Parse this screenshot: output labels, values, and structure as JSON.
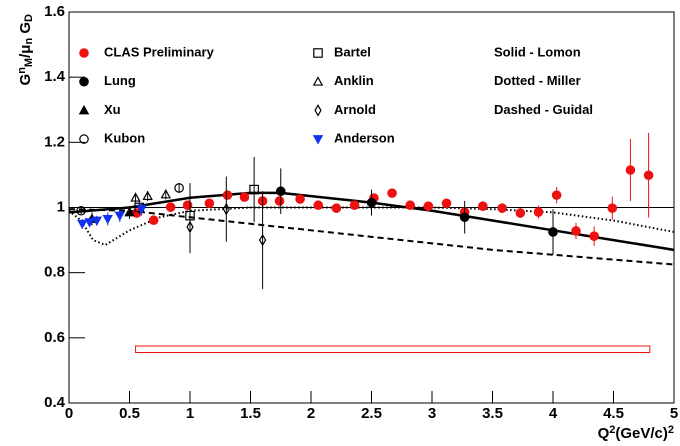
{
  "chart_data": {
    "type": "scatter",
    "ylabel": [
      {
        "text": "G"
      },
      {
        "sup": "n"
      },
      {
        "sub": "M"
      },
      {
        "text": "/μ"
      },
      {
        "sub": "n"
      },
      {
        "text": " G"
      },
      {
        "sub": "D"
      }
    ],
    "xlabel": [
      {
        "text": "Q"
      },
      {
        "sup": "2"
      },
      {
        "text": "(GeV/c)"
      },
      {
        "sup": "2"
      }
    ],
    "xlim": [
      0,
      5
    ],
    "ylim": [
      0.4,
      1.6
    ],
    "xticks": [
      0,
      0.5,
      1,
      1.5,
      2,
      2.5,
      3,
      3.5,
      4,
      4.5,
      5
    ],
    "yticks": [
      0.4,
      0.6,
      0.8,
      1,
      1.2,
      1.4,
      1.6
    ],
    "hline": 1,
    "annotations": [
      "Solid - Lomon",
      "Dotted - Miller",
      "Dashed - Guidal"
    ],
    "series": [
      {
        "name": "CLAS Preliminary",
        "marker": "circle",
        "filled": true,
        "color": "#ee1111",
        "x": [
          0.56,
          0.7,
          0.84,
          0.98,
          1.16,
          1.31,
          1.45,
          1.6,
          1.74,
          1.91,
          2.06,
          2.21,
          2.36,
          2.52,
          2.67,
          2.82,
          2.97,
          3.12,
          3.27,
          3.42,
          3.58,
          3.73,
          3.88,
          4.03,
          4.19,
          4.34,
          4.49,
          4.64,
          4.79
        ],
        "values": [
          0.983,
          0.961,
          1.001,
          1.007,
          1.013,
          1.038,
          1.032,
          1.02,
          1.02,
          1.026,
          1.007,
          0.998,
          1.007,
          1.029,
          1.044,
          1.007,
          1.004,
          1.013,
          0.986,
          1.004,
          0.998,
          0.983,
          0.986,
          1.038,
          0.928,
          0.912,
          0.998,
          1.115,
          1.099
        ],
        "errors": [
          0.01,
          0.01,
          0.01,
          0.01,
          0.01,
          0.01,
          0.01,
          0.01,
          0.01,
          0.01,
          0.01,
          0.01,
          0.01,
          0.01,
          0.01,
          0.01,
          0.01,
          0.01,
          0.015,
          0.015,
          0.015,
          0.015,
          0.02,
          0.025,
          0.025,
          0.03,
          0.035,
          0.095,
          0.13
        ]
      },
      {
        "name": "Lung",
        "marker": "circle",
        "filled": true,
        "color": "#000000",
        "x": [
          1.75,
          2.5,
          3.27,
          4.0
        ],
        "values": [
          1.05,
          1.015,
          0.97,
          0.925
        ],
        "errors": [
          0.07,
          0.04,
          0.05,
          0.07
        ]
      },
      {
        "name": "Xu",
        "marker": "triangle",
        "filled": true,
        "color": "#000000",
        "x": [
          0.19,
          0.5
        ],
        "values": [
          0.965,
          0.985
        ],
        "errors": [
          0.02,
          0.02
        ]
      },
      {
        "name": "Kubon",
        "marker": "circle",
        "filled": false,
        "color": "#000000",
        "x": [
          0.1,
          0.91
        ],
        "values": [
          0.99,
          1.06
        ],
        "errors": [
          0.01,
          0.015
        ]
      },
      {
        "name": "Bartel",
        "marker": "square",
        "filled": false,
        "color": "#000000",
        "x": [
          0.58,
          1.0,
          1.53
        ],
        "values": [
          1.0,
          0.975,
          1.055
        ],
        "errors": [
          0.02,
          0.1,
          0.1
        ]
      },
      {
        "name": "Anklin",
        "marker": "triangle",
        "filled": false,
        "color": "#000000",
        "x": [
          0.55,
          0.65,
          0.8
        ],
        "values": [
          1.03,
          1.035,
          1.04
        ],
        "errors": [
          0.015,
          0.015,
          0.015
        ]
      },
      {
        "name": "Arnold",
        "marker": "diamond",
        "filled": false,
        "color": "#000000",
        "x": [
          1.0,
          1.3,
          1.6
        ],
        "values": [
          0.94,
          0.995,
          0.9
        ],
        "errors": [
          0.08,
          0.1,
          0.15
        ]
      },
      {
        "name": "Anderson",
        "marker": "triangle-down",
        "filled": true,
        "color": "#1133ee",
        "x": [
          0.11,
          0.17,
          0.23,
          0.32,
          0.42,
          0.6
        ],
        "values": [
          0.95,
          0.955,
          0.96,
          0.965,
          0.975,
          0.995
        ],
        "errors": [
          0.015,
          0.015,
          0.015,
          0.02,
          0.02,
          0.02
        ]
      }
    ],
    "curves": [
      {
        "dash": "solid",
        "x": [
          0,
          0.5,
          1,
          1.5,
          1.75,
          2,
          2.5,
          3,
          3.5,
          4,
          4.5,
          5
        ],
        "values": [
          0.985,
          1.0,
          1.03,
          1.045,
          1.045,
          1.035,
          1.015,
          0.99,
          0.96,
          0.93,
          0.9,
          0.87
        ]
      },
      {
        "dash": "dotted",
        "x": [
          0,
          0.1,
          0.2,
          0.3,
          0.5,
          0.75,
          1,
          1.5,
          2,
          2.5,
          3,
          3.5,
          4,
          4.5,
          5
        ],
        "values": [
          0.99,
          0.96,
          0.9,
          0.885,
          0.93,
          0.97,
          0.99,
          1.0,
          1.0,
          1.0,
          1.0,
          0.995,
          0.985,
          0.96,
          0.925
        ]
      },
      {
        "dash": "dashed",
        "x": [
          0,
          0.5,
          1,
          1.5,
          2,
          2.5,
          3,
          3.5,
          4,
          4.5,
          5
        ],
        "values": [
          0.995,
          0.99,
          0.97,
          0.95,
          0.93,
          0.91,
          0.89,
          0.87,
          0.855,
          0.84,
          0.825
        ]
      }
    ],
    "systematic_band": {
      "color": "#ee1111",
      "x": [
        0.55,
        4.8
      ],
      "lower": [
        0.555,
        0.555
      ],
      "upper": [
        0.575,
        0.575
      ]
    }
  }
}
